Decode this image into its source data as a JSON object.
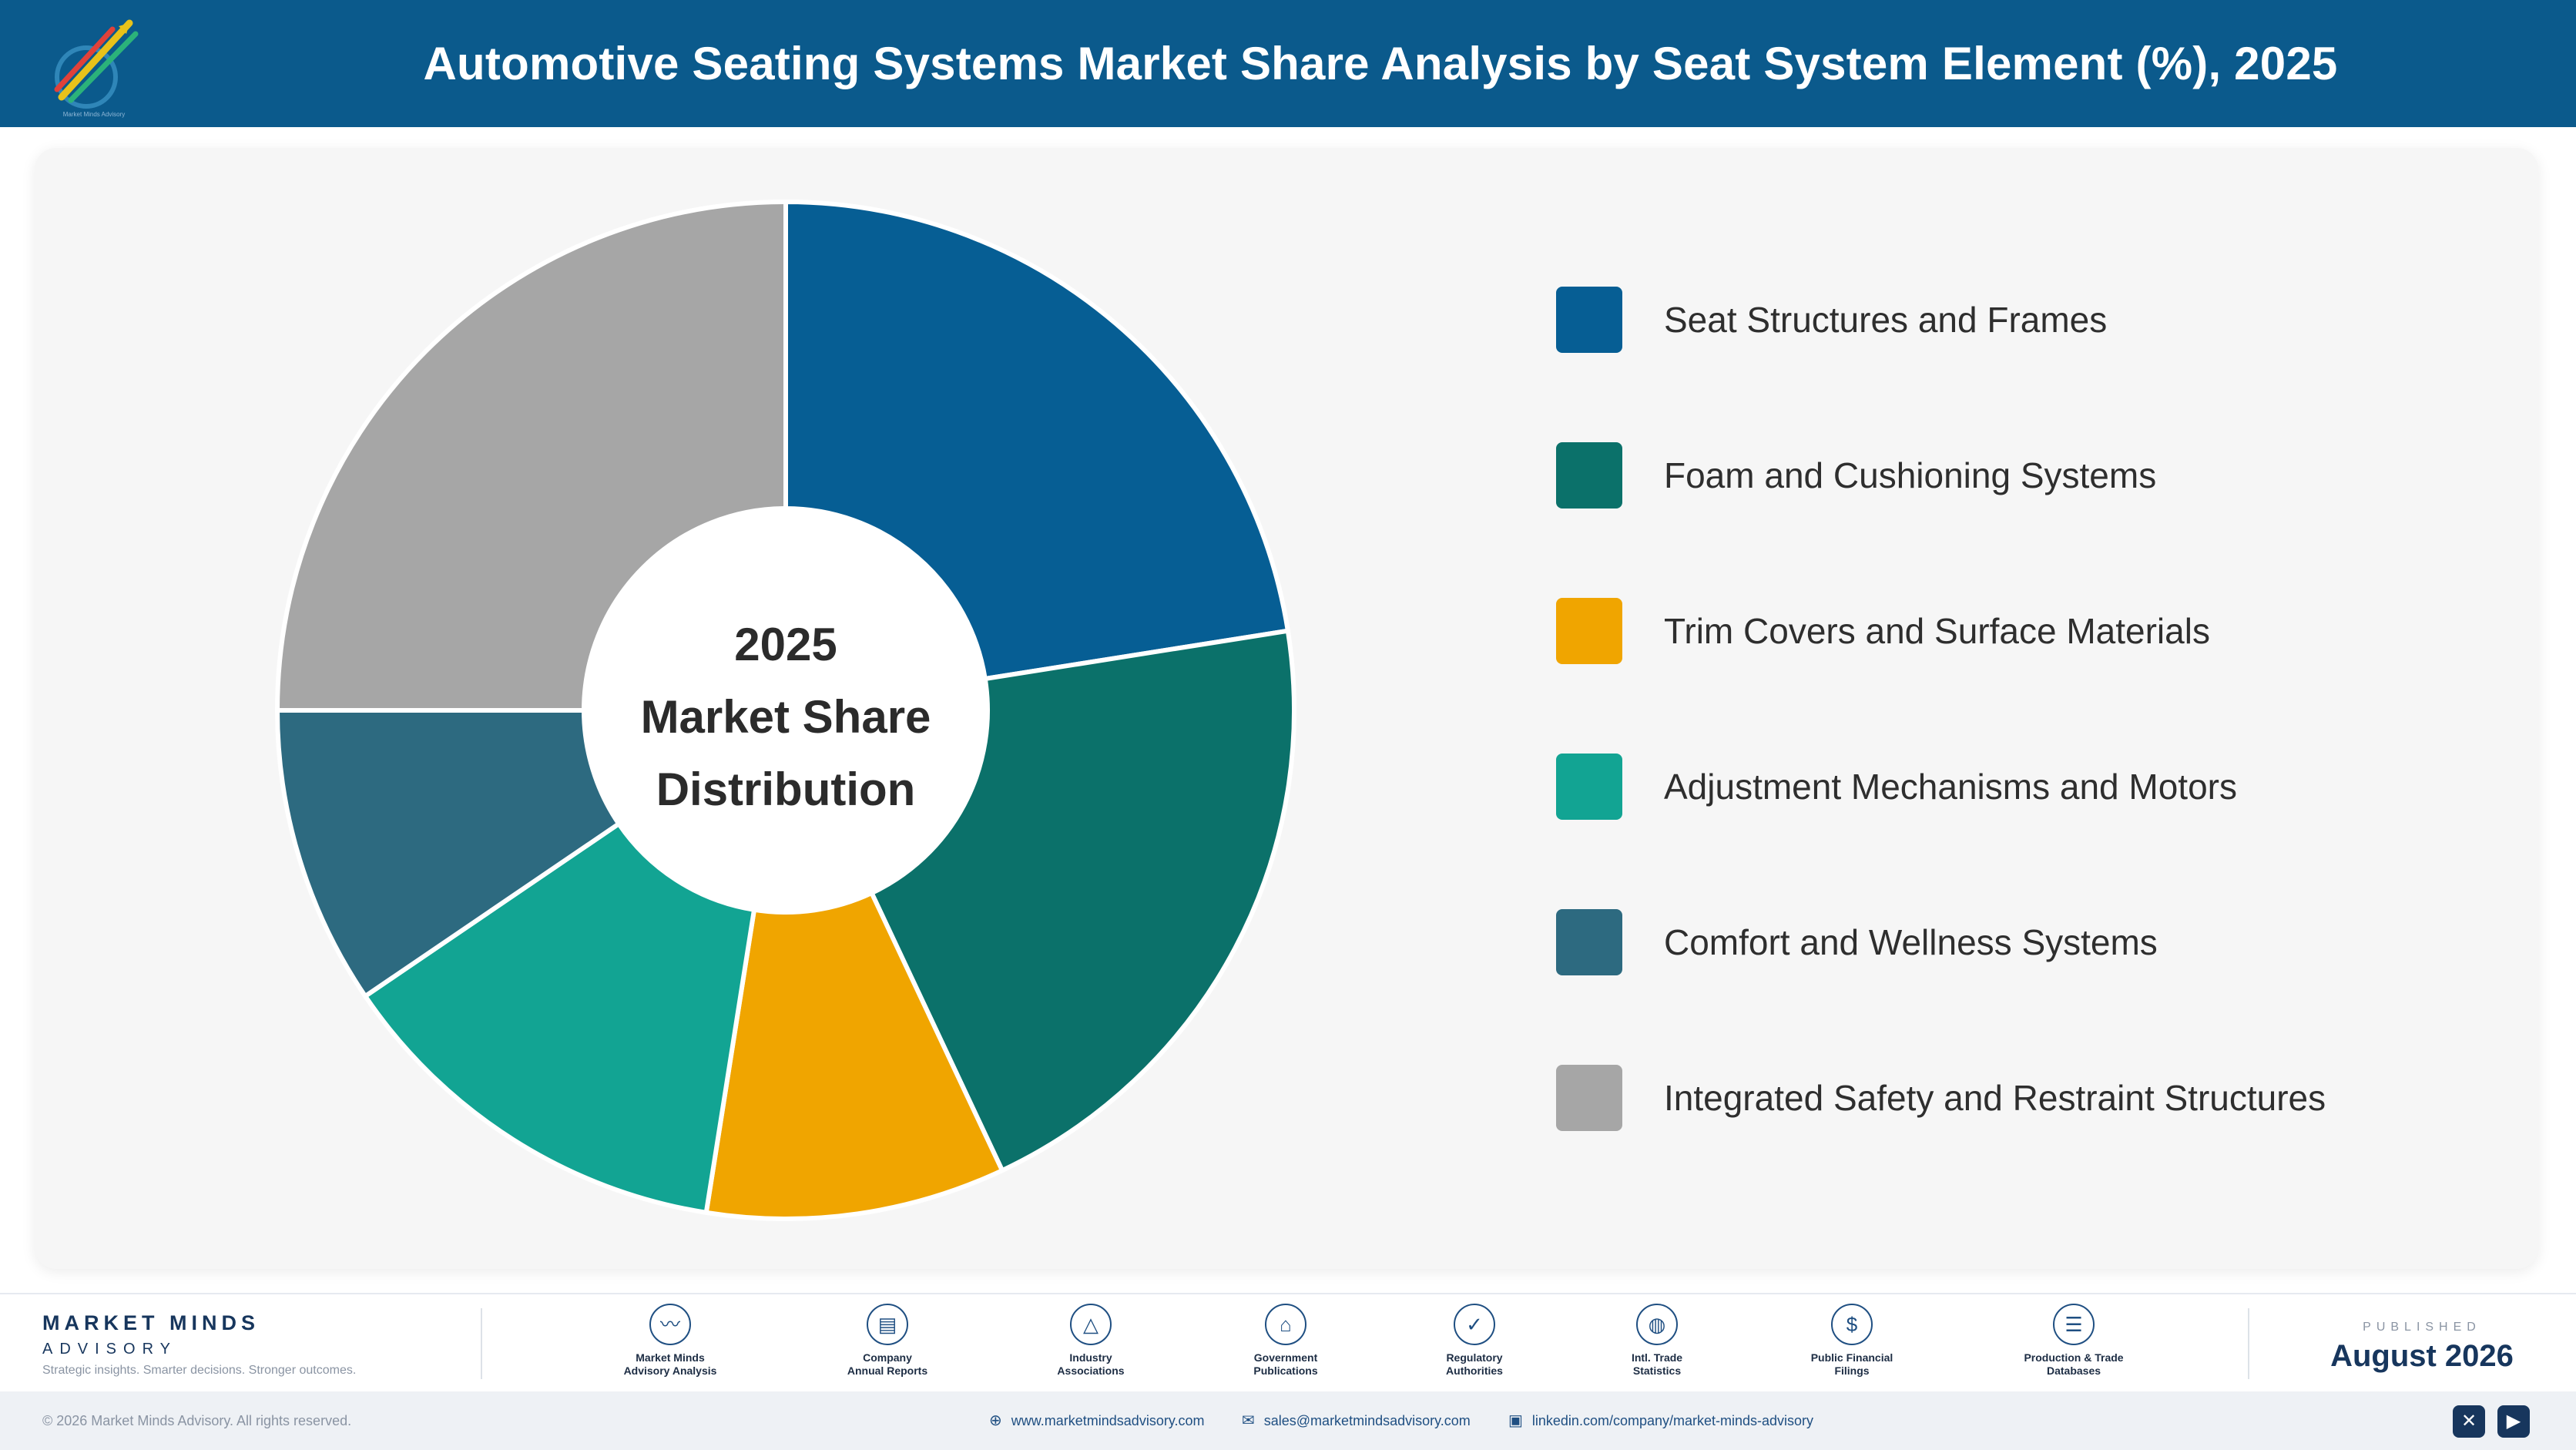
{
  "header": {
    "title": "Automotive Seating Systems Market Share Analysis by Seat System Element (%), 2025",
    "logo_text": "Market Minds Advisory"
  },
  "chart_data": {
    "type": "pie",
    "donut": true,
    "title": "Automotive Seating Systems Market Share Analysis by Seat System Element (%), 2025",
    "center_label": [
      "2025",
      "Market Share",
      "Distribution"
    ],
    "categories": [
      "Seat Structures and Frames",
      "Foam and Cushioning Systems",
      "Trim Covers and Surface Materials",
      "Adjustment Mechanisms and Motors",
      "Comfort and Wellness Systems",
      "Integrated Safety and Restraint Structures"
    ],
    "values": [
      22.5,
      20.5,
      9.5,
      13,
      9.5,
      25
    ],
    "colors": [
      "#065e94",
      "#0b716a",
      "#f0a500",
      "#12a493",
      "#2d6a80",
      "#a6a6a6"
    ],
    "legend_position": "right",
    "data_labels": false
  },
  "footer": {
    "brand_name": "MARKET MINDS",
    "brand_sub": "ADVISORY",
    "tagline": "Strategic insights. Smarter decisions. Stronger outcomes.",
    "sources": [
      {
        "icon": "chart-line-icon",
        "line1": "Market Minds",
        "line2": "Advisory Analysis"
      },
      {
        "icon": "document-icon",
        "line1": "Company",
        "line2": "Annual Reports"
      },
      {
        "icon": "network-icon",
        "line1": "Industry",
        "line2": "Associations"
      },
      {
        "icon": "government-building-icon",
        "line1": "Government",
        "line2": "Publications"
      },
      {
        "icon": "shield-check-icon",
        "line1": "Regulatory",
        "line2": "Authorities"
      },
      {
        "icon": "globe-icon",
        "line1": "Intl. Trade",
        "line2": "Statistics"
      },
      {
        "icon": "dollar-coin-icon",
        "line1": "Public Financial",
        "line2": "Filings"
      },
      {
        "icon": "database-icon",
        "line1": "Production & Trade",
        "line2": "Databases"
      }
    ],
    "published_label": "PUBLISHED",
    "published_date": "August 2026",
    "copyright": "© 2026 Market Minds Advisory. All rights reserved.",
    "website": "www.marketmindsadvisory.com",
    "email": "sales@marketmindsadvisory.com",
    "linkedin": "linkedin.com/company/market-minds-advisory"
  }
}
